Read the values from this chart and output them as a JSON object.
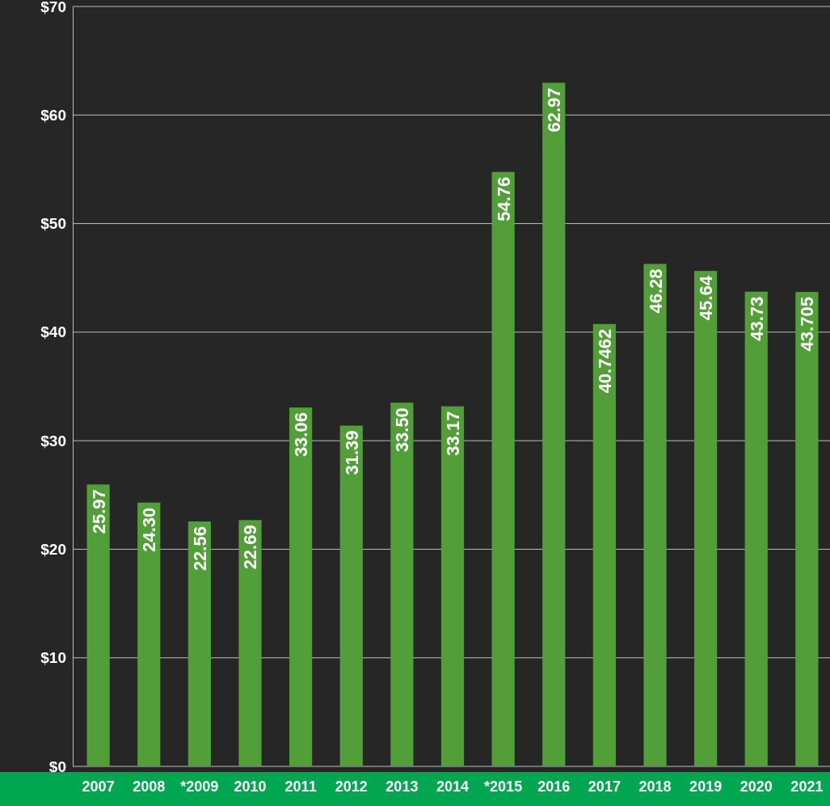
{
  "chart_data": {
    "type": "bar",
    "categories": [
      "2007",
      "2008",
      "*2009",
      "2010",
      "2011",
      "2012",
      "2013",
      "2014",
      "*2015",
      "2016",
      "2017",
      "2018",
      "2019",
      "2020",
      "2021"
    ],
    "values": [
      25.97,
      24.3,
      22.56,
      22.69,
      33.06,
      31.39,
      33.5,
      33.17,
      54.76,
      62.97,
      40.7462,
      46.28,
      45.64,
      43.73,
      43.705
    ],
    "value_labels": [
      "25.97",
      "24.30",
      "22.56",
      "22.69",
      "33.06",
      "31.39",
      "33.50",
      "33.17",
      "54.76",
      "62.97",
      "40.7462",
      "46.28",
      "45.64",
      "43.73",
      "43.705"
    ],
    "color": "#529e38",
    "ylim": [
      0,
      70
    ],
    "yticks": [
      {
        "value": 0,
        "label": "$0"
      },
      {
        "value": 10,
        "label": "$10"
      },
      {
        "value": 20,
        "label": "$20"
      },
      {
        "value": 30,
        "label": "$30"
      },
      {
        "value": 40,
        "label": "$40"
      },
      {
        "value": 50,
        "label": "$50"
      },
      {
        "value": 60,
        "label": "$60"
      },
      {
        "value": 70,
        "label": "$70"
      }
    ],
    "grid": "y"
  }
}
